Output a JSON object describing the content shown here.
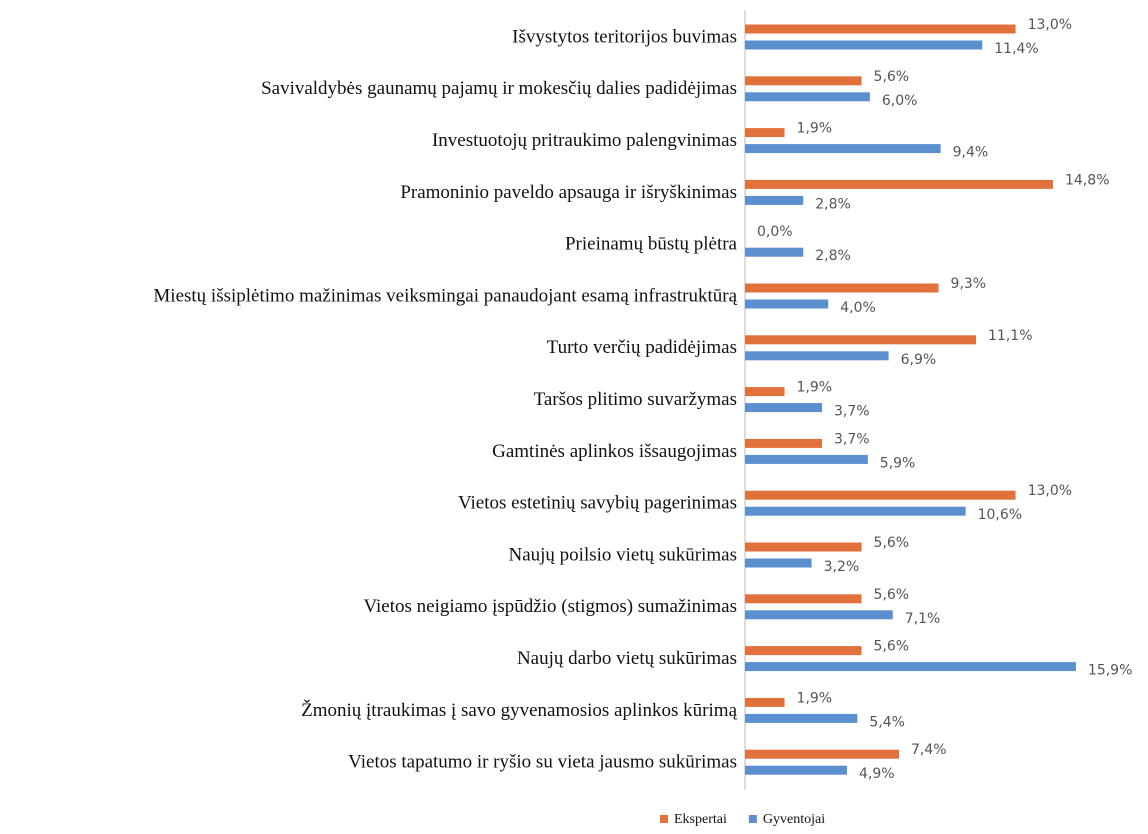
{
  "chart_data": {
    "type": "hbar",
    "categories": [
      "Išvystytos teritorijos buvimas",
      "Savivaldybės gaunamų pajamų ir mokesčių dalies padidėjimas",
      "Investuotojų pritraukimo palengvinimas",
      "Pramoninio paveldo apsauga ir išryškinimas",
      "Prieinamų būstų plėtra",
      "Miestų išsiplėtimo mažinimas veiksmingai panaudojant esamą infrastruktūrą",
      "Turto verčių padidėjimas",
      "Taršos plitimo suvaržymas",
      "Gamtinės aplinkos išsaugojimas",
      "Vietos estetinių savybių pagerinimas",
      "Naujų poilsio vietų sukūrimas",
      "Vietos neigiamo įspūdžio (stigmos) sumažinimas",
      "Naujų darbo vietų sukūrimas",
      "Žmonių įtraukimas į savo gyvenamosios aplinkos kūrimą",
      "Vietos tapatumo ir ryšio su vieta jausmo sukūrimas"
    ],
    "series": [
      {
        "name": "Ekspertai",
        "color": "#e2703a",
        "values": [
          13.0,
          5.6,
          1.9,
          14.8,
          0.0,
          9.3,
          11.1,
          1.9,
          3.7,
          13.0,
          5.6,
          5.6,
          5.6,
          1.9,
          7.4
        ],
        "value_labels": [
          "13,0%",
          "5,6%",
          "1,9%",
          "14,8%",
          "0,0%",
          "9,3%",
          "11,1%",
          "1,9%",
          "3,7%",
          "13,0%",
          "5,6%",
          "5,6%",
          "5,6%",
          "1,9%",
          "7,4%"
        ]
      },
      {
        "name": "Gyventojai",
        "color": "#5b8fd0",
        "values": [
          11.4,
          6.0,
          9.4,
          2.8,
          2.8,
          4.0,
          6.9,
          3.7,
          5.9,
          10.6,
          3.2,
          7.1,
          15.9,
          5.4,
          4.9
        ],
        "value_labels": [
          "11,4%",
          "6,0%",
          "9,4%",
          "2,8%",
          "2,8%",
          "4,0%",
          "6,9%",
          "3,7%",
          "5,9%",
          "10,6%",
          "3,2%",
          "7,1%",
          "15,9%",
          "5,4%",
          "4,9%"
        ]
      }
    ],
    "xlim": [
      0,
      16
    ],
    "legend": "bottom"
  }
}
